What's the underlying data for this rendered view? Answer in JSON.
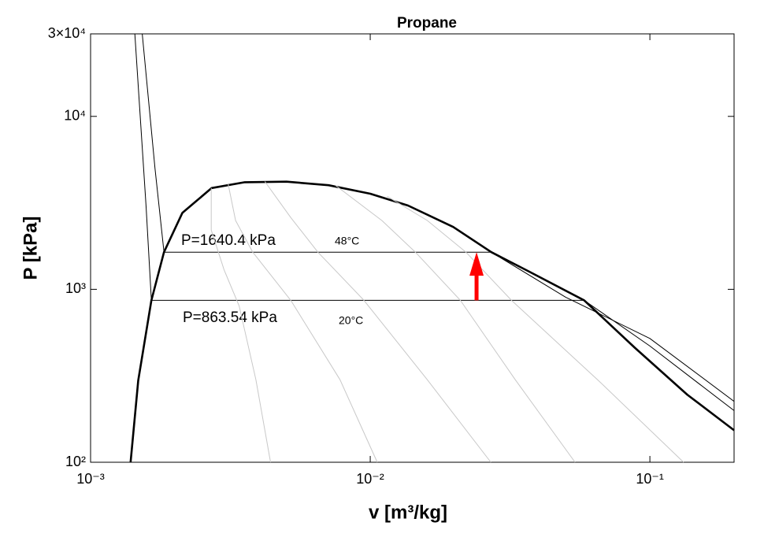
{
  "chart_data": {
    "type": "line",
    "title": "Propane",
    "x_label": "v [m³/kg]",
    "y_label": "P [kPa]",
    "xscale": "log",
    "yscale": "log",
    "xlim": [
      0.001,
      0.2
    ],
    "ylim": [
      100,
      30000
    ],
    "xticks": [
      {
        "value": 0.001,
        "label": "10⁻³"
      },
      {
        "value": 0.01,
        "label": "10⁻²"
      },
      {
        "value": 0.1,
        "label": "10⁻¹"
      }
    ],
    "yticks": [
      {
        "value": 100,
        "label": "10²"
      },
      {
        "value": 1000,
        "label": "10³"
      },
      {
        "value": 10000,
        "label": "10⁴"
      },
      {
        "value": 30000,
        "label": "3×10⁴"
      }
    ],
    "grid": false,
    "series": [
      {
        "color": "#000000",
        "x": [
          0.00139,
          0.00148,
          0.00165,
          0.00183,
          0.00213,
          0.00271,
          0.00356,
          0.00502,
          0.0071,
          0.01,
          0.01365,
          0.0198,
          0.0271,
          0.037,
          0.0582,
          0.0883,
          0.136,
          0.2
        ],
        "values": [
          100,
          297,
          863.54,
          1640.4,
          2770,
          3850,
          4160,
          4190,
          4000,
          3570,
          3050,
          2295,
          1640.4,
          1266,
          863.54,
          460,
          246,
          153
        ]
      },
      {
        "color": "#000000",
        "x": [
          0.00153,
          0.0017,
          0.00183,
          0.0271,
          0.05,
          0.1,
          0.2
        ],
        "values": [
          30000,
          5000,
          1640.4,
          1640.4,
          900,
          520,
          225
        ]
      },
      {
        "color": "#000000",
        "x": [
          0.00144,
          0.00158,
          0.00165,
          0.0582,
          0.1,
          0.2
        ],
        "values": [
          30000,
          3000,
          863.54,
          863.54,
          470,
          199
        ]
      },
      {
        "color": "#c8c8c8",
        "x": [
          0.0027,
          0.0027,
          0.003,
          0.0034,
          0.0039,
          0.0044
        ],
        "values": [
          3850,
          2200,
          1300,
          800,
          300,
          100
        ]
      },
      {
        "color": "#c8c8c8",
        "x": [
          0.0031,
          0.0033,
          0.0038,
          0.0052,
          0.0078,
          0.0106
        ],
        "values": [
          4100,
          2500,
          1640.4,
          863.54,
          300,
          100
        ]
      },
      {
        "color": "#c8c8c8",
        "x": [
          0.0042,
          0.0052,
          0.0065,
          0.0095,
          0.016,
          0.027
        ],
        "values": [
          4200,
          2600,
          1640.4,
          863.54,
          300,
          100
        ]
      },
      {
        "color": "#c8c8c8",
        "x": [
          0.0075,
          0.011,
          0.0145,
          0.021,
          0.033,
          0.054
        ],
        "values": [
          4000,
          2500,
          1640.4,
          863.54,
          300,
          100
        ]
      },
      {
        "color": "#c8c8c8",
        "x": [
          0.0115,
          0.016,
          0.022,
          0.032,
          0.065,
          0.132
        ],
        "values": [
          3450,
          2500,
          1640.4,
          863.54,
          300,
          100
        ]
      }
    ],
    "arrow": {
      "x": 0.024,
      "from": 863.54,
      "to": 1640.4,
      "color": "#ff0000"
    },
    "annotations": [
      "P=1640.4 kPa",
      "48°C",
      "P=863.54 kPa",
      "20°C"
    ]
  }
}
